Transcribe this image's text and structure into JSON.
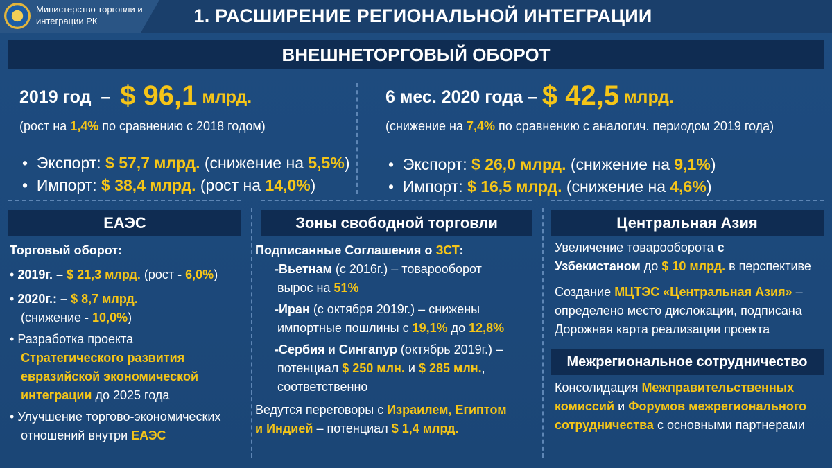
{
  "header": {
    "ministry_line1": "Министерство торговли и",
    "ministry_line2": "интеграции РК",
    "title": "1. РАСШИРЕНИЕ РЕГИОНАЛЬНОЙ ИНТЕГРАЦИИ"
  },
  "trade": {
    "heading": "ВНЕШНЕТОРГОВЫЙ ОБОРОТ",
    "y2019": {
      "label": "2019 год",
      "dash": "–",
      "amount": "$ 96,1",
      "unit": "млрд.",
      "note_pre": "(рост на ",
      "note_pct": "1,4%",
      "note_post": " по сравнению с 2018 годом)",
      "export_label": "Экспорт:",
      "export_value": "$ 57,7 млрд.",
      "export_note_pre": "(снижение на ",
      "export_pct": "5,5%",
      "close": ")",
      "import_label": "Импорт:",
      "import_value": "$ 38,4 млрд.",
      "import_note_pre": "(рост на ",
      "import_pct": "14,0%"
    },
    "h2020": {
      "label": "6 мес. 2020 года",
      "dash": "–",
      "amount": "$ 42,5",
      "unit": "млрд.",
      "note_pre": "(снижение на ",
      "note_pct": "7,4%",
      "note_post": " по сравнению с аналогич. периодом 2019 года)",
      "export_label": "Экспорт:",
      "export_value": "$ 26,0 млрд.",
      "export_note_pre": "(снижение на ",
      "export_pct": "9,1%",
      "close": ")",
      "import_label": "Импорт:",
      "import_value": "$ 16,5 млрд.",
      "import_note_pre": "(снижение на ",
      "import_pct": "4,6%"
    }
  },
  "eaes": {
    "heading": "ЕАЭС",
    "turnover_label": "Торговый оборот:",
    "y2019_label": "2019г. –",
    "y2019_value": "$ 21,3 млрд.",
    "y2019_note_pre": "(рост - ",
    "y2019_pct": "6,0%",
    "close": ")",
    "y2020_label": "2020г.: –",
    "y2020_value": "$ 8,7 млрд.",
    "y2020_note_pre": "(снижение - ",
    "y2020_pct": "10,0%",
    "dev_pre": "Разработка проекта",
    "dev_y1": "Стратегического развития",
    "dev_y2": "евразийской экономической",
    "dev_y3": "интеграции",
    "dev_post": " до 2025 года",
    "improve_line1": "Улучшение  торгово-экономических",
    "improve_line2_pre": "отношений внутри ",
    "improve_y": "ЕАЭС"
  },
  "fta": {
    "heading": "Зоны свободной торговли",
    "signed_pre": "Подписанные Соглашения о ",
    "signed_y": "ЗСТ",
    "signed_post": ":",
    "vn_name": "-Вьетнам",
    "vn_text": "  (с 2016г.) – товарооборот",
    "vn_line2_pre": "вырос на ",
    "vn_pct": "51%",
    "ir_name": "-Иран",
    "ir_text": " (с октября 2019г.) – снижены",
    "ir_line2_pre": "импортные пошлины с ",
    "ir_from": "19,1%",
    "ir_mid": " до ",
    "ir_to": "12,8%",
    "rs_name": "-Сербия",
    "rs_and": " и ",
    "sg_name": "Сингапур",
    "rs_text": " (октябрь 2019г.) –",
    "rs_line2_pre": "потенциал ",
    "rs_v1": "$ 250 млн.",
    "rs_and2": " и ",
    "rs_v2": "$ 285 млн.",
    "rs_comma": ",",
    "rs_line3": "соответственно",
    "neg_pre": "Ведутся  переговоры с ",
    "neg_y1": "Израилем, Египтом",
    "neg_y2": "и Индией",
    "neg_mid": " – потенциал  ",
    "neg_v": "$ 1,4 млрд."
  },
  "central_asia": {
    "heading": "Центральная Азия",
    "l1_pre": "Увеличение товарооборота ",
    "l1_b": "с",
    "l2_b": "Узбекистаном",
    "l2_mid": " до ",
    "l2_y": "$ 10 млрд.",
    "l2_post": " в перспективе",
    "l3_pre": "Создание ",
    "l3_y": "МЦТЭС «Центральная Азия»",
    "l3_post": " –",
    "l4": "определено место дислокации, подписана",
    "l5": "Дорожная карта реализации проекта"
  },
  "interregional": {
    "heading": "Межрегиональное сотрудничество",
    "l1_pre": "Консолидация ",
    "l1_y": "Межправительственных",
    "l2_y1": "комиссий",
    "l2_mid": " и ",
    "l2_y2": "Форумов межрегионального",
    "l3_y": "сотрудничества",
    "l3_post": " с основными партнерами"
  }
}
